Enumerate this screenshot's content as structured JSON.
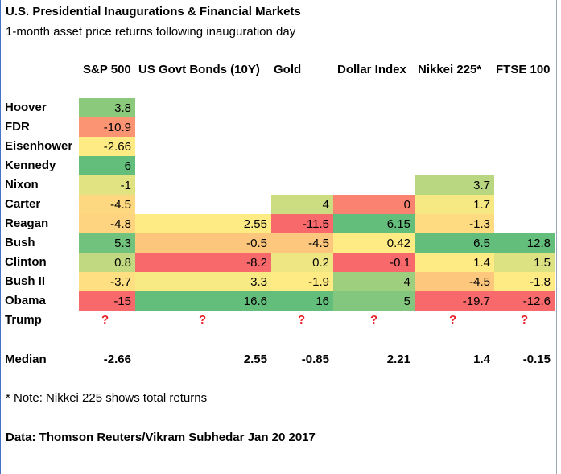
{
  "title": "U.S. Presidential Inaugurations & Financial Markets",
  "subtitle": "1-month asset price returns following inauguration day",
  "note": "* Note: Nikkei 225 shows total returns",
  "source": "Data: Thomson Reuters/Vikram Subhedar Jan 20 2017",
  "unknown_mark": "?",
  "median_label": "Median",
  "chart_data": {
    "type": "heatmap",
    "title": "U.S. Presidential Inaugurations & Financial Markets",
    "subtitle": "1-month asset price returns following inauguration day",
    "columns": [
      "S&P 500",
      "US Govt Bonds (10Y)",
      "Gold",
      "Dollar Index",
      "Nikkei 225*",
      "FTSE 100"
    ],
    "rows": [
      {
        "name": "Hoover",
        "values": [
          "3.8",
          null,
          null,
          null,
          null,
          null
        ]
      },
      {
        "name": "FDR",
        "values": [
          "-10.9",
          null,
          null,
          null,
          null,
          null
        ]
      },
      {
        "name": "Eisenhower",
        "values": [
          "-2.66",
          null,
          null,
          null,
          null,
          null
        ]
      },
      {
        "name": "Kennedy",
        "values": [
          "6",
          null,
          null,
          null,
          null,
          null
        ]
      },
      {
        "name": "Nixon",
        "values": [
          "-1",
          null,
          null,
          null,
          "3.7",
          null
        ]
      },
      {
        "name": "Carter",
        "values": [
          "-4.5",
          null,
          "4",
          "0",
          "1.7",
          null
        ]
      },
      {
        "name": "Reagan",
        "values": [
          "-4.8",
          "2.55",
          "-11.5",
          "6.15",
          "-1.3",
          null
        ]
      },
      {
        "name": "Bush",
        "values": [
          "5.3",
          "-0.5",
          "-4.5",
          "0.42",
          "6.5",
          "12.8"
        ]
      },
      {
        "name": "Clinton",
        "values": [
          "0.8",
          "-8.2",
          "0.2",
          "-0.1",
          "1.4",
          "1.5"
        ]
      },
      {
        "name": "Bush II",
        "values": [
          "-3.7",
          "3.3",
          "-1.9",
          "4",
          "-4.5",
          "-1.8"
        ]
      },
      {
        "name": "Obama",
        "values": [
          "-15",
          "16.6",
          "16",
          "5",
          "-19.7",
          "-12.6"
        ]
      },
      {
        "name": "Trump",
        "values": [
          "?",
          "?",
          "?",
          "?",
          "?",
          "?"
        ]
      }
    ],
    "median": [
      "-2.66",
      "2.55",
      "-0.85",
      "2.21",
      "1.4",
      "-0.15"
    ],
    "color_scale": {
      "low": "#f8696b",
      "mid": "#ffeb84",
      "high": "#63be7b"
    }
  }
}
